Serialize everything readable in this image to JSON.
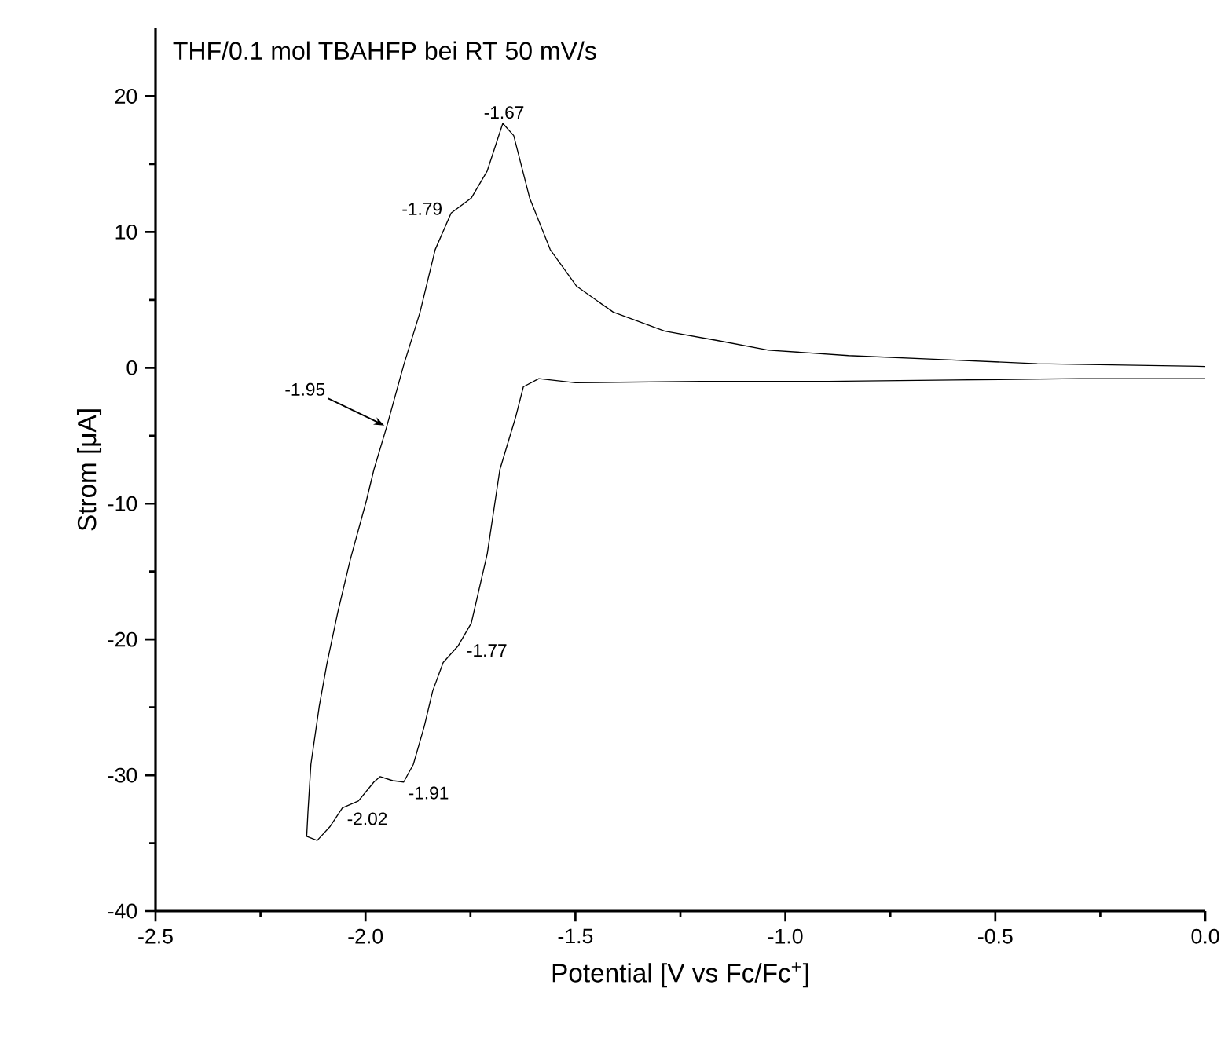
{
  "chart_data": {
    "type": "line",
    "title": "THF/0.1 mol TBAHFP bei RT 50 mV/s",
    "xlabel": "Potential [V vs Fc/Fc$^{+}$]",
    "ylabel": "Strom [μA]",
    "xlim": [
      -2.5,
      0.0
    ],
    "ylim": [
      -40,
      25
    ],
    "xticks": [
      {
        "value": -2.5,
        "label": "-2.5"
      },
      {
        "value": -2.0,
        "label": "-2.0"
      },
      {
        "value": -1.5,
        "label": "-1.5"
      },
      {
        "value": -1.0,
        "label": "-1.0"
      },
      {
        "value": -0.5,
        "label": "-0.5"
      },
      {
        "value": 0.0,
        "label": "0.0"
      }
    ],
    "yticks": [
      -40,
      -30,
      -20,
      -10,
      0,
      10,
      20
    ],
    "grid": false,
    "marker": "none",
    "line_style": "solid",
    "series": [
      {
        "color": "#000000",
        "x": [
          0.0,
          -0.3,
          -0.6,
          -0.9,
          -1.2,
          -1.5,
          -1.587,
          -1.624,
          -1.643,
          -1.68,
          -1.71,
          -1.748,
          -1.78,
          -1.815,
          -1.84,
          -1.86,
          -1.886,
          -1.909,
          -1.935,
          -1.965,
          -1.98,
          -2.017,
          -2.055,
          -2.085,
          -2.115,
          -2.14,
          -2.137,
          -2.13,
          -2.11,
          -2.092,
          -2.066,
          -2.036,
          -1.998,
          -1.98,
          -1.95,
          -1.909,
          -1.87,
          -1.834,
          -1.796,
          -1.748,
          -1.71,
          -1.673,
          -1.647,
          -1.609,
          -1.56,
          -1.497,
          -1.41,
          -1.287,
          -1.16,
          -1.04,
          -0.85,
          -0.625,
          -0.4,
          -0.2,
          0.0
        ],
        "values": [
          -0.8,
          -0.8,
          -0.9,
          -1.0,
          -1.0,
          -1.1,
          -0.8,
          -1.4,
          -3.7,
          -7.5,
          -13.7,
          -18.8,
          -20.5,
          -21.7,
          -23.8,
          -26.4,
          -29.2,
          -30.5,
          -30.4,
          -30.1,
          -30.5,
          -31.9,
          -32.4,
          -33.8,
          -34.8,
          -34.5,
          -32.7,
          -29.2,
          -24.9,
          -21.8,
          -18.0,
          -14.1,
          -9.8,
          -7.5,
          -4.4,
          0.2,
          4.1,
          8.7,
          11.4,
          12.5,
          14.5,
          18.0,
          17.1,
          12.5,
          8.7,
          6.0,
          4.1,
          2.7,
          2.0,
          1.3,
          0.9,
          0.6,
          0.3,
          0.2,
          0.1
        ]
      }
    ],
    "annotations": [
      {
        "text": "-1.67",
        "x": -1.67,
        "y": 18.0
      },
      {
        "text": "-1.79",
        "x": -1.796,
        "y": 11.4
      },
      {
        "text": "-1.95",
        "x": -1.95,
        "y": -4.4
      },
      {
        "text": "-1.77",
        "x": -1.78,
        "y": -20.5
      },
      {
        "text": "-1.91",
        "x": -1.909,
        "y": -30.5
      },
      {
        "text": "-2.02",
        "x": -2.055,
        "y": -32.4
      }
    ]
  }
}
